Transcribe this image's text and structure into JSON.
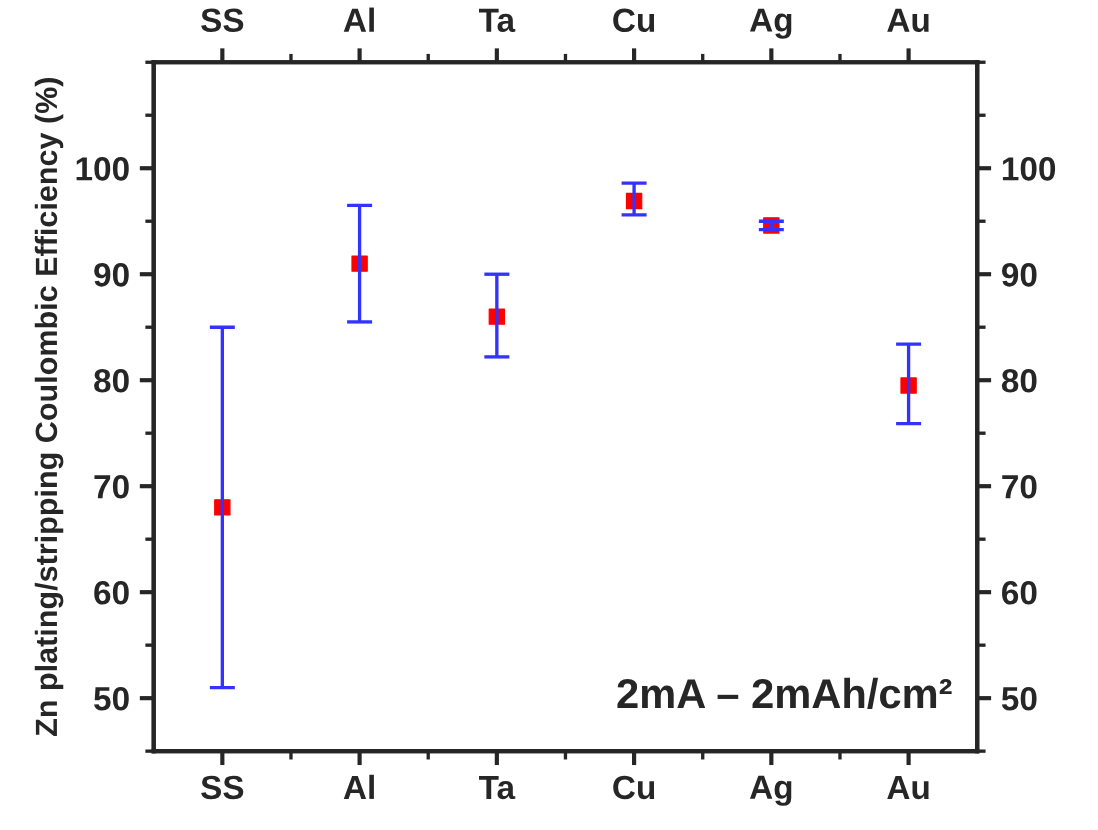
{
  "chart_data": {
    "type": "scatter",
    "ylabel": "Zn plating/stripping Coulombic Efficiency (%)",
    "categories": [
      "SS",
      "Al",
      "Ta",
      "Cu",
      "Ag",
      "Au"
    ],
    "series": [
      {
        "color": "#ff0000",
        "values": [
          68,
          91,
          86,
          96.9,
          94.6,
          79.5
        ],
        "errors": [
          [
            51,
            85
          ],
          [
            85.5,
            96.5
          ],
          [
            82.2,
            90
          ],
          [
            95.6,
            98.6
          ],
          [
            94.2,
            95
          ],
          [
            75.9,
            83.4
          ]
        ]
      }
    ],
    "marker": "square",
    "ylim": [
      45,
      110
    ],
    "yticks": [
      50,
      60,
      70,
      80,
      90,
      100
    ],
    "y2lim": [
      45,
      110
    ],
    "y2ticks": [
      50,
      60,
      70,
      80,
      90,
      100
    ],
    "annotations": [
      "2mA – 2mAh/cm²"
    ],
    "grid": false,
    "legend": false
  }
}
